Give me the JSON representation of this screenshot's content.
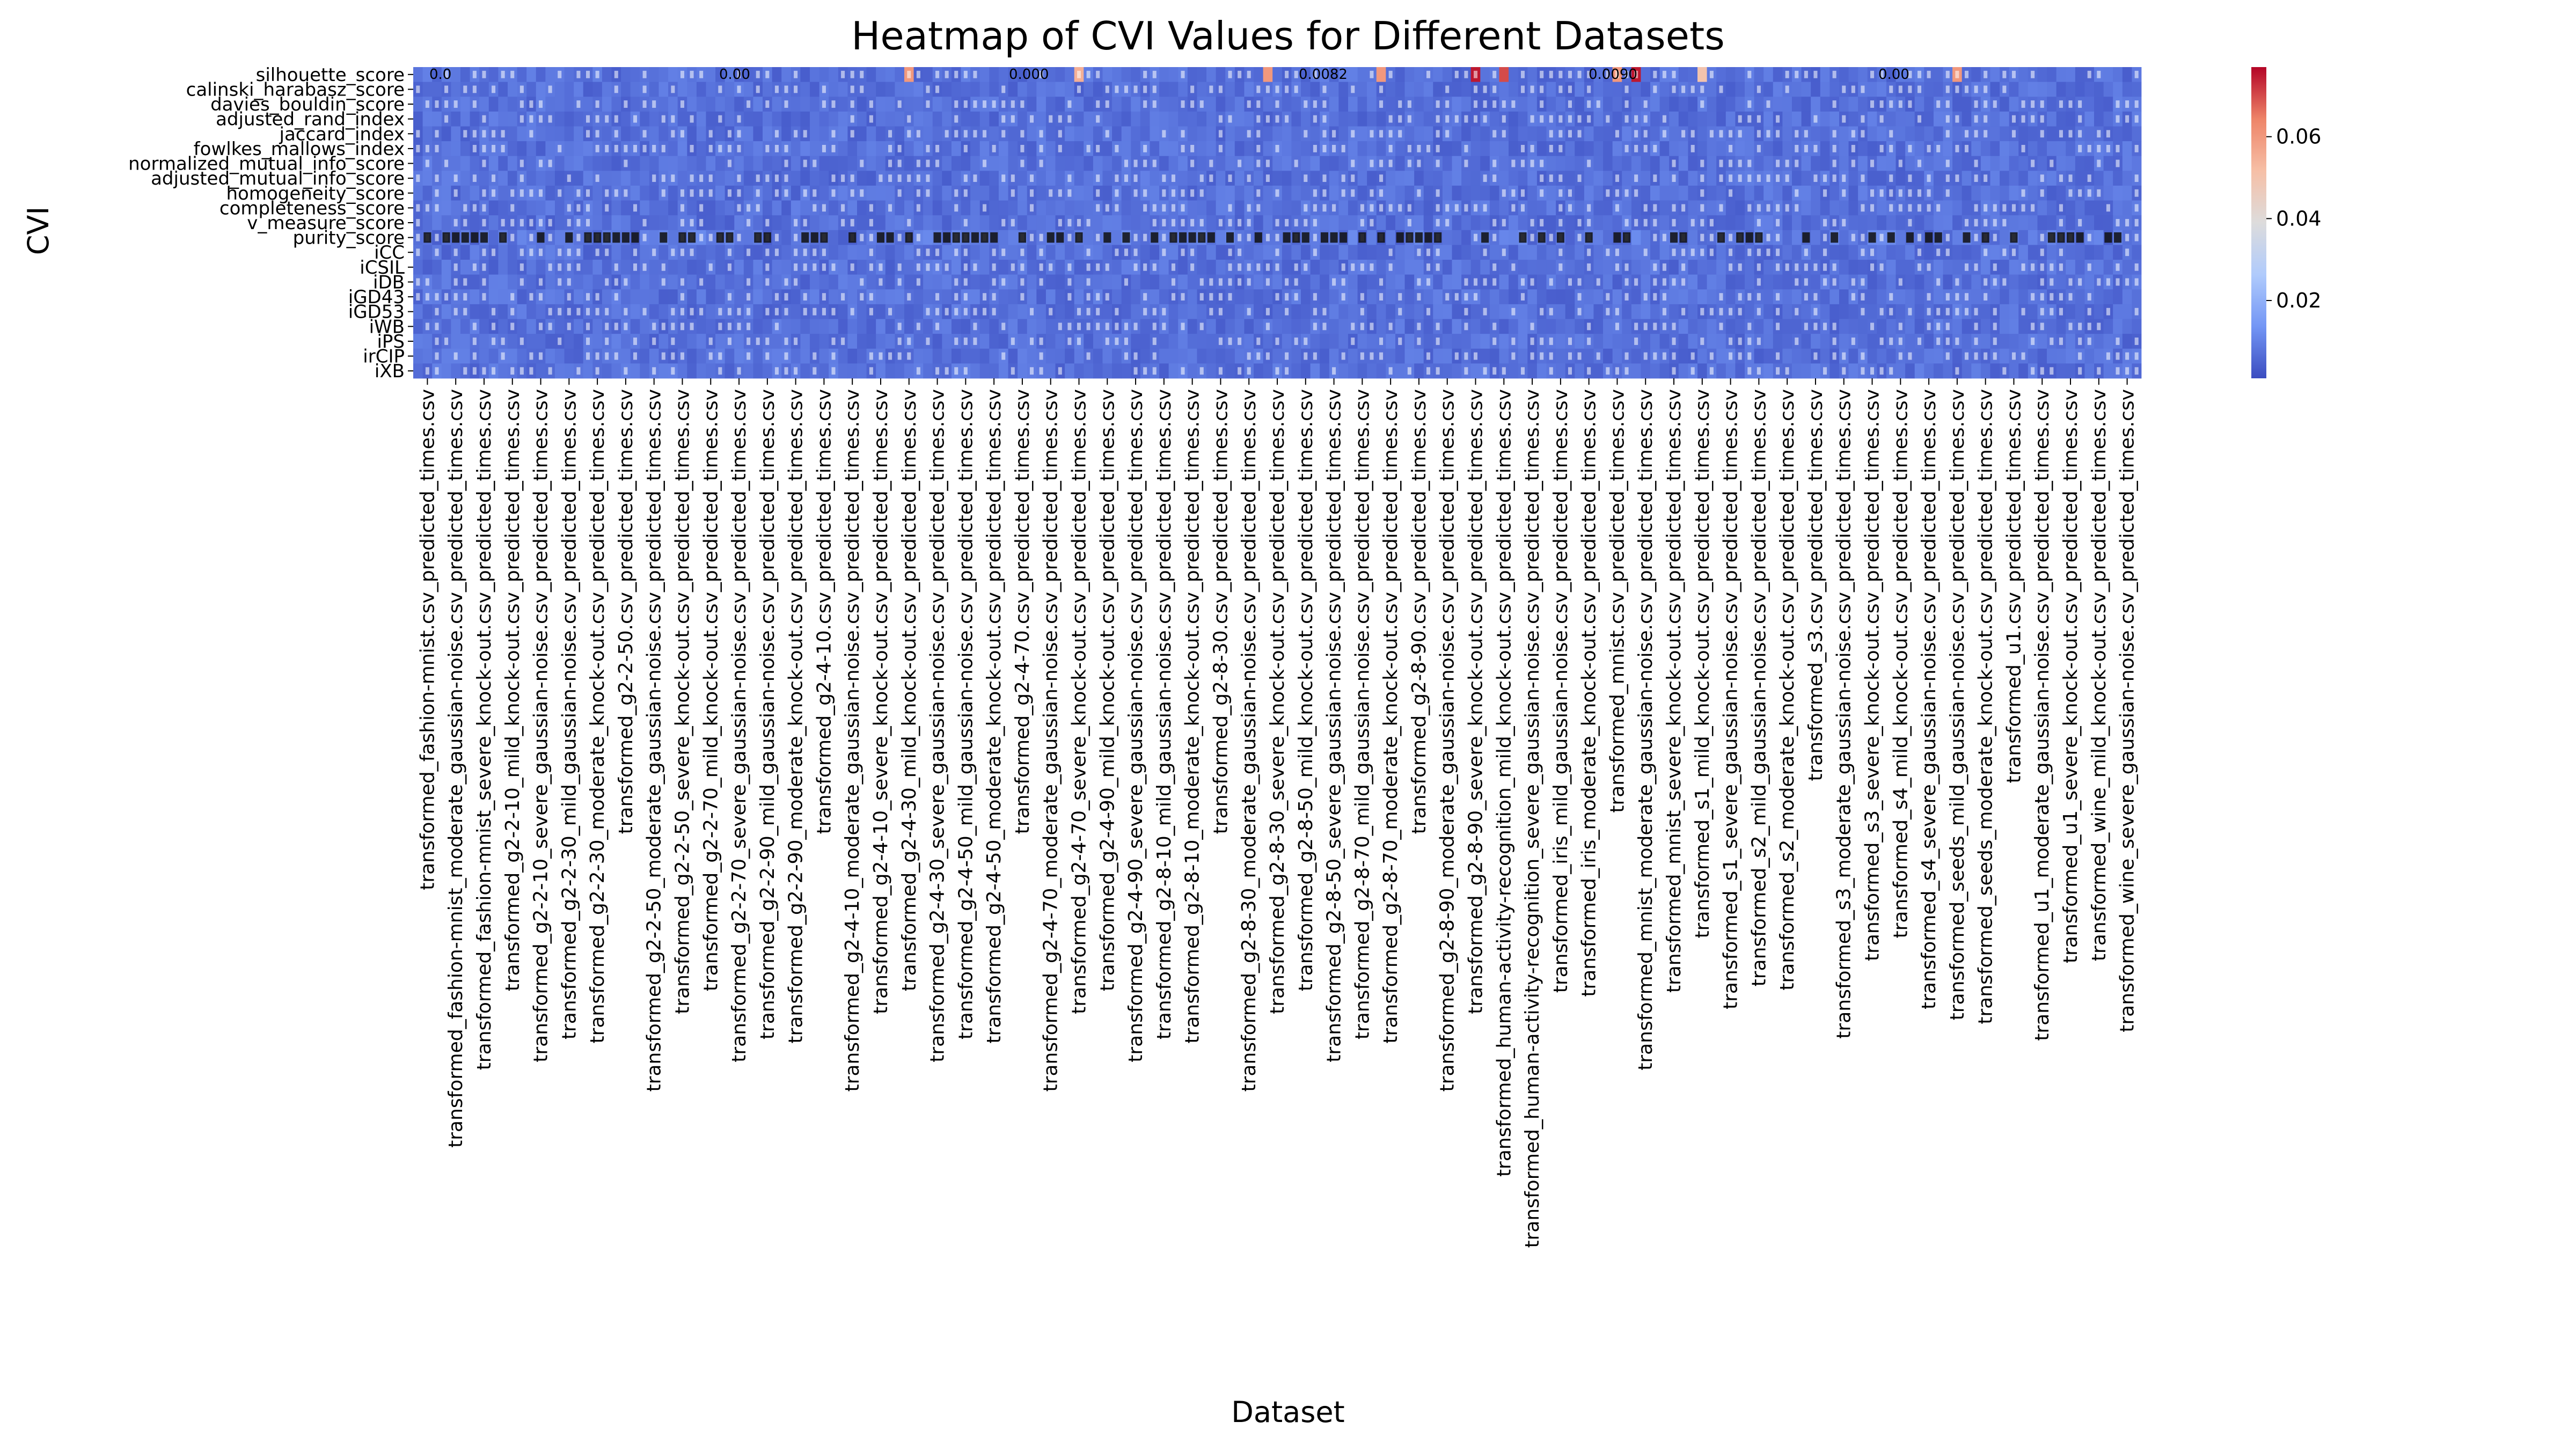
{
  "chart_data": {
    "type": "heatmap",
    "title": "Heatmap of CVI Values for Different Datasets",
    "xlabel": "Dataset",
    "ylabel": "CVI",
    "colormap": "coolwarm",
    "colormap_stops": [
      "#3b4cc0",
      "#7396f5",
      "#b0cbfc",
      "#dddcdc",
      "#f6bfa6",
      "#ee8468",
      "#b40426"
    ],
    "colorbar": {
      "range": [
        0.001,
        0.077
      ],
      "ticks": [
        0.02,
        0.04,
        0.06
      ],
      "tick_labels": [
        "0.02",
        "0.04",
        "0.06"
      ]
    },
    "rows": [
      "silhouette_score",
      "calinski_harabasz_score",
      "davies_bouldin_score",
      "adjusted_rand_index",
      "jaccard_index",
      "fowlkes_mallows_index",
      "normalized_mutual_info_score",
      "adjusted_mutual_info_score",
      "homogeneity_score",
      "completeness_score",
      "v_measure_score",
      "purity_score",
      "iCC",
      "iCSIL",
      "iDB",
      "iGD43",
      "iGD53",
      "iWB",
      "iPS",
      "irCIP",
      "iXB"
    ],
    "labeled_columns": [
      "transformed_fashion-mnist.csv_predicted_times.csv",
      "transformed_fashion-mnist_moderate_gaussian-noise.csv_predicted_times.csv",
      "transformed_fashion-mnist_severe_knock-out.csv_predicted_times.csv",
      "transformed_g2-2-10_mild_knock-out.csv_predicted_times.csv",
      "transformed_g2-2-10_severe_gaussian-noise.csv_predicted_times.csv",
      "transformed_g2-2-30_mild_gaussian-noise.csv_predicted_times.csv",
      "transformed_g2-2-30_moderate_knock-out.csv_predicted_times.csv",
      "transformed_g2-2-50.csv_predicted_times.csv",
      "transformed_g2-2-50_moderate_gaussian-noise.csv_predicted_times.csv",
      "transformed_g2-2-50_severe_knock-out.csv_predicted_times.csv",
      "transformed_g2-2-70_mild_knock-out.csv_predicted_times.csv",
      "transformed_g2-2-70_severe_gaussian-noise.csv_predicted_times.csv",
      "transformed_g2-2-90_mild_gaussian-noise.csv_predicted_times.csv",
      "transformed_g2-2-90_moderate_knock-out.csv_predicted_times.csv",
      "transformed_g2-4-10.csv_predicted_times.csv",
      "transformed_g2-4-10_moderate_gaussian-noise.csv_predicted_times.csv",
      "transformed_g2-4-10_severe_knock-out.csv_predicted_times.csv",
      "transformed_g2-4-30_mild_knock-out.csv_predicted_times.csv",
      "transformed_g2-4-30_severe_gaussian-noise.csv_predicted_times.csv",
      "transformed_g2-4-50_mild_gaussian-noise.csv_predicted_times.csv",
      "transformed_g2-4-50_moderate_knock-out.csv_predicted_times.csv",
      "transformed_g2-4-70.csv_predicted_times.csv",
      "transformed_g2-4-70_moderate_gaussian-noise.csv_predicted_times.csv",
      "transformed_g2-4-70_severe_knock-out.csv_predicted_times.csv",
      "transformed_g2-4-90_mild_knock-out.csv_predicted_times.csv",
      "transformed_g2-4-90_severe_gaussian-noise.csv_predicted_times.csv",
      "transformed_g2-8-10_mild_gaussian-noise.csv_predicted_times.csv",
      "transformed_g2-8-10_moderate_knock-out.csv_predicted_times.csv",
      "transformed_g2-8-30.csv_predicted_times.csv",
      "transformed_g2-8-30_moderate_gaussian-noise.csv_predicted_times.csv",
      "transformed_g2-8-30_severe_knock-out.csv_predicted_times.csv",
      "transformed_g2-8-50_mild_knock-out.csv_predicted_times.csv",
      "transformed_g2-8-50_severe_gaussian-noise.csv_predicted_times.csv",
      "transformed_g2-8-70_mild_gaussian-noise.csv_predicted_times.csv",
      "transformed_g2-8-70_moderate_knock-out.csv_predicted_times.csv",
      "transformed_g2-8-90.csv_predicted_times.csv",
      "transformed_g2-8-90_moderate_gaussian-noise.csv_predicted_times.csv",
      "transformed_g2-8-90_severe_knock-out.csv_predicted_times.csv",
      "transformed_human-activity-recognition_mild_knock-out.csv_predicted_times.csv",
      "transformed_human-activity-recognition_severe_gaussian-noise.csv_predicted_times.csv",
      "transformed_iris_mild_gaussian-noise.csv_predicted_times.csv",
      "transformed_iris_moderate_knock-out.csv_predicted_times.csv",
      "transformed_mnist.csv_predicted_times.csv",
      "transformed_mnist_moderate_gaussian-noise.csv_predicted_times.csv",
      "transformed_mnist_severe_knock-out.csv_predicted_times.csv",
      "transformed_s1_mild_knock-out.csv_predicted_times.csv",
      "transformed_s1_severe_gaussian-noise.csv_predicted_times.csv",
      "transformed_s2_mild_gaussian-noise.csv_predicted_times.csv",
      "transformed_s2_moderate_knock-out.csv_predicted_times.csv",
      "transformed_s3.csv_predicted_times.csv",
      "transformed_s3_moderate_gaussian-noise.csv_predicted_times.csv",
      "transformed_s3_severe_knock-out.csv_predicted_times.csv",
      "transformed_s4_mild_knock-out.csv_predicted_times.csv",
      "transformed_s4_severe_gaussian-noise.csv_predicted_times.csv",
      "transformed_seeds_mild_gaussian-noise.csv_predicted_times.csv",
      "transformed_seeds_moderate_knock-out.csv_predicted_times.csv",
      "transformed_u1.csv_predicted_times.csv",
      "transformed_u1_moderate_gaussian-noise.csv_predicted_times.csv",
      "transformed_u1_severe_knock-out.csv_predicted_times.csv",
      "transformed_wine_mild_knock-out.csv_predicted_times.csv",
      "transformed_wine_severe_gaussian-noise.csv_predicted_times.csv"
    ],
    "columns_per_label": 3,
    "values_note_visible": false,
    "cell_values_estimated": {
      "baseline": 0.004,
      "high_cells": [
        {
          "row": "silhouette_score",
          "approx_values": [
            0.07,
            0.06,
            0.055,
            0.05,
            0.06,
            0.07,
            0.075
          ]
        },
        {
          "row": "purity_score",
          "approx_values": [
            0.008,
            0.009,
            0.01
          ]
        }
      ]
    },
    "annotation_samples": [
      "0.0",
      "0.00",
      "0.000",
      "0.0082",
      "0.0090",
      "0.00"
    ],
    "grid": false,
    "legend": "colorbar-right"
  }
}
